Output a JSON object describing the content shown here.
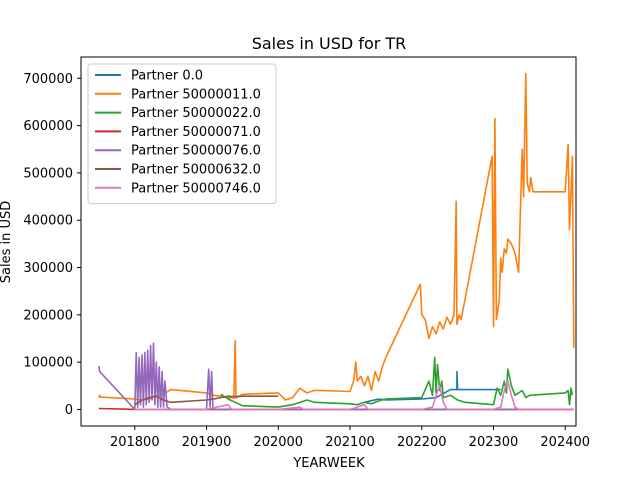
{
  "chart_data": {
    "type": "line",
    "title": "Sales in USD for TR",
    "xlabel": "YEARWEEK",
    "ylabel": "Sales in USD",
    "xlim": [
      201725,
      202415
    ],
    "ylim": [
      -35000,
      745000
    ],
    "xticks": [
      201800,
      201900,
      202000,
      202100,
      202200,
      202300,
      202400
    ],
    "yticks": [
      0,
      100000,
      200000,
      300000,
      400000,
      500000,
      600000,
      700000
    ],
    "grid": false,
    "legend_position": "upper-left",
    "series": [
      {
        "name": "Partner 0.0",
        "color": "#1f77b4",
        "points": [
          [
            202120,
            15000
          ],
          [
            202140,
            22000
          ],
          [
            202150,
            20000
          ],
          [
            202200,
            22000
          ],
          [
            202220,
            25000
          ],
          [
            202240,
            42000
          ],
          [
            202249,
            42000
          ],
          [
            202249,
            80000
          ],
          [
            202250,
            42000
          ],
          [
            202300,
            42000
          ],
          [
            202310,
            42000
          ]
        ]
      },
      {
        "name": "Partner 50000011.0",
        "color": "#ff7f0e",
        "points": [
          [
            201750,
            25000
          ],
          [
            201751,
            30000
          ],
          [
            201752,
            26000
          ],
          [
            201800,
            22000
          ],
          [
            201810,
            20000
          ],
          [
            201820,
            22000
          ],
          [
            201830,
            28000
          ],
          [
            201840,
            32000
          ],
          [
            201850,
            42000
          ],
          [
            201900,
            35000
          ],
          [
            201910,
            30000
          ],
          [
            201920,
            28000
          ],
          [
            201930,
            25000
          ],
          [
            201938,
            24000
          ],
          [
            201940,
            145000
          ],
          [
            201941,
            24000
          ],
          [
            201950,
            32000
          ],
          [
            202000,
            35000
          ],
          [
            202010,
            20000
          ],
          [
            202020,
            25000
          ],
          [
            202030,
            45000
          ],
          [
            202040,
            35000
          ],
          [
            202050,
            40000
          ],
          [
            202060,
            40000
          ],
          [
            202100,
            38000
          ],
          [
            202105,
            60000
          ],
          [
            202108,
            100000
          ],
          [
            202110,
            60000
          ],
          [
            202115,
            70000
          ],
          [
            202120,
            50000
          ],
          [
            202125,
            70000
          ],
          [
            202130,
            40000
          ],
          [
            202135,
            80000
          ],
          [
            202140,
            60000
          ],
          [
            202145,
            90000
          ],
          [
            202150,
            110000
          ],
          [
            202198,
            265000
          ],
          [
            202200,
            200000
          ],
          [
            202205,
            190000
          ],
          [
            202210,
            150000
          ],
          [
            202215,
            175000
          ],
          [
            202220,
            160000
          ],
          [
            202225,
            185000
          ],
          [
            202230,
            170000
          ],
          [
            202235,
            195000
          ],
          [
            202240,
            180000
          ],
          [
            202245,
            200000
          ],
          [
            202248,
            440000
          ],
          [
            202249,
            180000
          ],
          [
            202252,
            200000
          ],
          [
            202255,
            190000
          ],
          [
            202298,
            535000
          ],
          [
            202300,
            175000
          ],
          [
            202302,
            615000
          ],
          [
            202304,
            190000
          ],
          [
            202308,
            230000
          ],
          [
            202310,
            320000
          ],
          [
            202312,
            290000
          ],
          [
            202315,
            340000
          ],
          [
            202318,
            330000
          ],
          [
            202320,
            360000
          ],
          [
            202325,
            350000
          ],
          [
            202330,
            330000
          ],
          [
            202335,
            290000
          ],
          [
            202340,
            550000
          ],
          [
            202342,
            450000
          ],
          [
            202345,
            710000
          ],
          [
            202347,
            480000
          ],
          [
            202350,
            460000
          ],
          [
            202352,
            490000
          ],
          [
            202355,
            460000
          ],
          [
            202400,
            460000
          ],
          [
            202404,
            560000
          ],
          [
            202406,
            380000
          ],
          [
            202408,
            460000
          ],
          [
            202410,
            535000
          ],
          [
            202412,
            130000
          ]
        ]
      },
      {
        "name": "Partner 50000022.0",
        "color": "#2ca02c",
        "points": [
          [
            201920,
            32000
          ],
          [
            201930,
            22000
          ],
          [
            201940,
            15000
          ],
          [
            201950,
            8000
          ],
          [
            202000,
            5000
          ],
          [
            202020,
            10000
          ],
          [
            202040,
            20000
          ],
          [
            202050,
            15000
          ],
          [
            202100,
            12000
          ],
          [
            202110,
            10000
          ],
          [
            202120,
            15000
          ],
          [
            202130,
            12000
          ],
          [
            202140,
            18000
          ],
          [
            202150,
            22000
          ],
          [
            202200,
            25000
          ],
          [
            202210,
            60000
          ],
          [
            202215,
            30000
          ],
          [
            202218,
            110000
          ],
          [
            202220,
            35000
          ],
          [
            202222,
            95000
          ],
          [
            202225,
            40000
          ],
          [
            202228,
            60000
          ],
          [
            202230,
            25000
          ],
          [
            202240,
            30000
          ],
          [
            202250,
            20000
          ],
          [
            202260,
            15000
          ],
          [
            202300,
            10000
          ],
          [
            202305,
            45000
          ],
          [
            202310,
            30000
          ],
          [
            202315,
            60000
          ],
          [
            202318,
            35000
          ],
          [
            202320,
            85000
          ],
          [
            202325,
            50000
          ],
          [
            202330,
            30000
          ],
          [
            202340,
            40000
          ],
          [
            202345,
            25000
          ],
          [
            202350,
            30000
          ],
          [
            202400,
            35000
          ],
          [
            202404,
            40000
          ],
          [
            202406,
            10000
          ],
          [
            202408,
            45000
          ],
          [
            202410,
            30000
          ]
        ]
      },
      {
        "name": "Partner 50000071.0",
        "color": "#d62728",
        "points": [
          [
            201750,
            2000
          ],
          [
            201800,
            0
          ],
          [
            201850,
            0
          ],
          [
            201900,
            0
          ],
          [
            202000,
            0
          ],
          [
            202100,
            0
          ],
          [
            202200,
            0
          ],
          [
            202300,
            0
          ],
          [
            202412,
            0
          ]
        ]
      },
      {
        "name": "Partner 50000076.0",
        "color": "#9467bd",
        "points": [
          [
            201750,
            92000
          ],
          [
            201751,
            80000
          ],
          [
            201800,
            0
          ],
          [
            201802,
            120000
          ],
          [
            201804,
            5000
          ],
          [
            201806,
            110000
          ],
          [
            201808,
            10000
          ],
          [
            201810,
            115000
          ],
          [
            201812,
            5000
          ],
          [
            201814,
            120000
          ],
          [
            201816,
            10000
          ],
          [
            201818,
            125000
          ],
          [
            201820,
            15000
          ],
          [
            201822,
            135000
          ],
          [
            201824,
            20000
          ],
          [
            201826,
            140000
          ],
          [
            201828,
            10000
          ],
          [
            201830,
            100000
          ],
          [
            201832,
            5000
          ],
          [
            201834,
            90000
          ],
          [
            201836,
            5000
          ],
          [
            201838,
            80000
          ],
          [
            201840,
            5000
          ],
          [
            201842,
            60000
          ],
          [
            201845,
            5000
          ],
          [
            201850,
            0
          ],
          [
            201900,
            0
          ],
          [
            201903,
            85000
          ],
          [
            201905,
            5000
          ],
          [
            201907,
            80000
          ],
          [
            201909,
            0
          ],
          [
            201920,
            0
          ],
          [
            202000,
            0
          ],
          [
            202100,
            0
          ],
          [
            202200,
            0
          ],
          [
            202300,
            0
          ],
          [
            202412,
            0
          ]
        ]
      },
      {
        "name": "Partner 50000632.0",
        "color": "#8c564b",
        "points": [
          [
            201800,
            10000
          ],
          [
            201810,
            20000
          ],
          [
            201820,
            25000
          ],
          [
            201830,
            28000
          ],
          [
            201840,
            20000
          ],
          [
            201850,
            15000
          ],
          [
            201900,
            20000
          ],
          [
            201910,
            22000
          ],
          [
            201920,
            25000
          ],
          [
            201930,
            28000
          ],
          [
            201940,
            27000
          ],
          [
            201950,
            28000
          ],
          [
            202000,
            28000
          ]
        ]
      },
      {
        "name": "Partner 50000746.0",
        "color": "#e377c2",
        "points": [
          [
            201800,
            0
          ],
          [
            201900,
            0
          ],
          [
            201930,
            10000
          ],
          [
            201935,
            0
          ],
          [
            202000,
            0
          ],
          [
            202030,
            5000
          ],
          [
            202035,
            0
          ],
          [
            202100,
            0
          ],
          [
            202120,
            10000
          ],
          [
            202125,
            0
          ],
          [
            202200,
            0
          ],
          [
            202215,
            5000
          ],
          [
            202220,
            30000
          ],
          [
            202225,
            50000
          ],
          [
            202230,
            15000
          ],
          [
            202235,
            0
          ],
          [
            202300,
            0
          ],
          [
            202310,
            5000
          ],
          [
            202315,
            40000
          ],
          [
            202320,
            60000
          ],
          [
            202325,
            30000
          ],
          [
            202330,
            5000
          ],
          [
            202335,
            0
          ],
          [
            202412,
            0
          ]
        ]
      }
    ]
  }
}
